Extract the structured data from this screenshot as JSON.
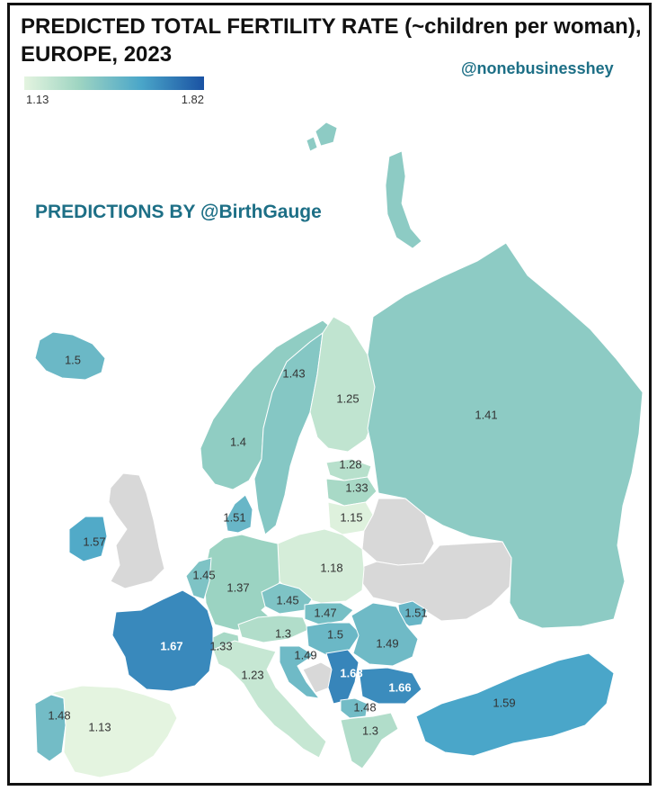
{
  "header": {
    "title_line1": "PREDICTED TOTAL FERTILITY RATE (~children per woman),",
    "title_line2": "EUROPE, 2023",
    "handle": "@nonebusinesshey",
    "credit": "PREDICTIONS BY @BirthGauge"
  },
  "legend": {
    "min_label": "1.13",
    "max_label": "1.82"
  },
  "colors": {
    "no_data": "#d8d8d8",
    "sea": "#ffffff",
    "scale": [
      "#e4f4e0",
      "#9fd5c2",
      "#4aa6c9",
      "#1a52a3"
    ]
  },
  "regions": [
    {
      "id": "iceland",
      "value": 1.5,
      "label": "1.5"
    },
    {
      "id": "norway",
      "value": 1.4,
      "label": "1.4"
    },
    {
      "id": "sweden",
      "value": 1.43,
      "label": "1.43"
    },
    {
      "id": "finland",
      "value": 1.25,
      "label": "1.25"
    },
    {
      "id": "russia",
      "value": 1.41,
      "label": "1.41"
    },
    {
      "id": "estonia",
      "value": 1.28,
      "label": "1.28"
    },
    {
      "id": "latvia",
      "value": 1.33,
      "label": "1.33"
    },
    {
      "id": "lithuania",
      "value": 1.15,
      "label": "1.15"
    },
    {
      "id": "denmark",
      "value": 1.51,
      "label": "1.51"
    },
    {
      "id": "ireland",
      "value": 1.57,
      "label": "1.57"
    },
    {
      "id": "uk",
      "value": null,
      "label": ""
    },
    {
      "id": "belarus",
      "value": null,
      "label": ""
    },
    {
      "id": "ukraine",
      "value": null,
      "label": ""
    },
    {
      "id": "poland",
      "value": 1.18,
      "label": "1.18"
    },
    {
      "id": "germany",
      "value": 1.37,
      "label": "1.37"
    },
    {
      "id": "benelux",
      "value": 1.45,
      "label": "1.45"
    },
    {
      "id": "czechia",
      "value": 1.45,
      "label": "1.45"
    },
    {
      "id": "slovakia",
      "value": 1.47,
      "label": "1.47"
    },
    {
      "id": "austria",
      "value": 1.3,
      "label": "1.3"
    },
    {
      "id": "hungary",
      "value": 1.5,
      "label": "1.5"
    },
    {
      "id": "moldova",
      "value": 1.51,
      "label": "1.51"
    },
    {
      "id": "romania",
      "value": 1.49,
      "label": "1.49"
    },
    {
      "id": "switzerland",
      "value": 1.33,
      "label": "1.33"
    },
    {
      "id": "france",
      "value": 1.67,
      "label": "1.67"
    },
    {
      "id": "italy",
      "value": 1.23,
      "label": "1.23"
    },
    {
      "id": "croatia",
      "value": 1.49,
      "label": "1.49"
    },
    {
      "id": "bosnia",
      "value": null,
      "label": ""
    },
    {
      "id": "serbia",
      "value": 1.68,
      "label": "1.68"
    },
    {
      "id": "bulgaria",
      "value": 1.66,
      "label": "1.66"
    },
    {
      "id": "north_macedonia",
      "value": 1.48,
      "label": "1.48"
    },
    {
      "id": "greece",
      "value": 1.3,
      "label": "1.3"
    },
    {
      "id": "turkey",
      "value": 1.59,
      "label": "1.59"
    },
    {
      "id": "portugal",
      "value": 1.48,
      "label": "1.48"
    },
    {
      "id": "spain",
      "value": 1.13,
      "label": "1.13"
    }
  ]
}
